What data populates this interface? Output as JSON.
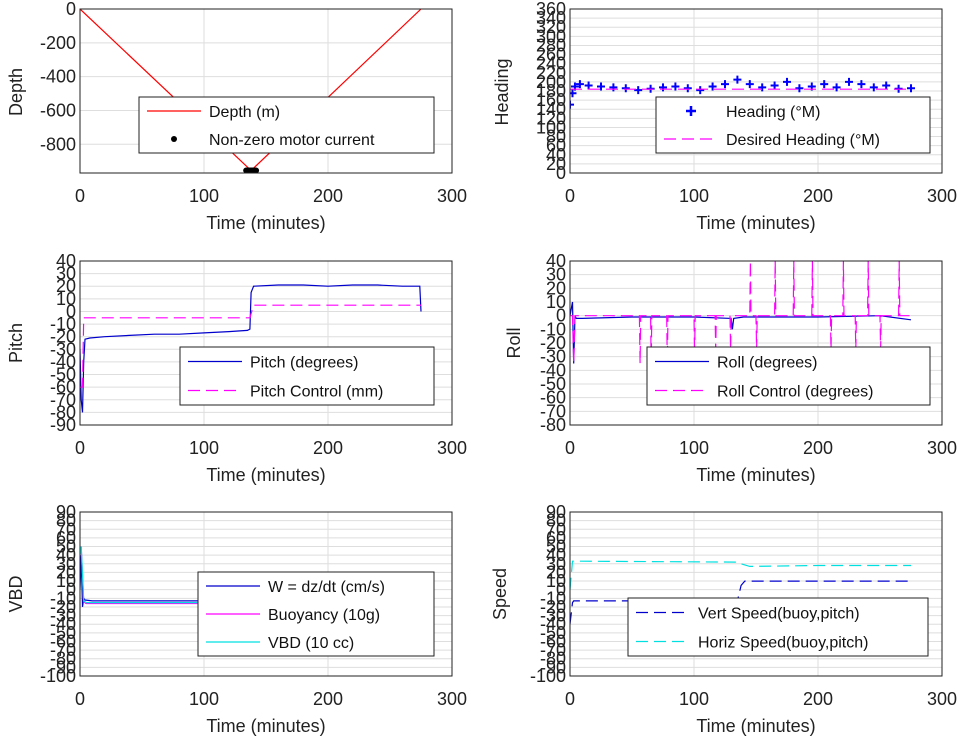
{
  "chart_data": [
    {
      "type": "line",
      "ylabel": "Depth",
      "xlabel": "Time (minutes)",
      "xlim": [
        0,
        300
      ],
      "xticks": [
        0,
        100,
        200,
        300
      ],
      "ylim": [
        -970,
        0
      ],
      "yticks": [
        0,
        -200,
        -400,
        -600,
        -800
      ],
      "legend_position": "lower-right",
      "series": [
        {
          "name": "Depth (m)",
          "style": "solid",
          "marker": "none",
          "color": "#ff0000",
          "x": [
            0,
            138,
            275
          ],
          "y": [
            0,
            -955,
            0
          ]
        },
        {
          "name": "Non-zero motor current",
          "style": "none",
          "marker": "dot",
          "color": "#000000",
          "x": [
            134,
            135,
            136,
            137,
            138,
            139,
            140,
            141,
            142
          ],
          "y": [
            -955,
            -955,
            -955,
            -955,
            -955,
            -955,
            -955,
            -955,
            -955
          ]
        }
      ]
    },
    {
      "type": "scatter",
      "ylabel": "Heading",
      "xlabel": "Time (minutes)",
      "xlim": [
        0,
        300
      ],
      "xticks": [
        0,
        100,
        200,
        300
      ],
      "ylim": [
        0,
        360
      ],
      "yticks": [
        0,
        20,
        40,
        60,
        80,
        100,
        120,
        140,
        160,
        180,
        200,
        220,
        240,
        260,
        280,
        300,
        320,
        340,
        360
      ],
      "legend_position": "lower-right",
      "series": [
        {
          "name": "Heading (°M)",
          "style": "none",
          "marker": "plus",
          "color": "#0000ff",
          "x": [
            0,
            2,
            4,
            8,
            15,
            25,
            35,
            45,
            55,
            65,
            75,
            85,
            95,
            105,
            115,
            125,
            135,
            145,
            155,
            165,
            175,
            185,
            195,
            205,
            215,
            225,
            235,
            245,
            255,
            265,
            275
          ],
          "y": [
            150,
            175,
            190,
            195,
            192,
            190,
            188,
            186,
            182,
            185,
            188,
            190,
            186,
            182,
            190,
            195,
            205,
            195,
            188,
            192,
            200,
            186,
            190,
            195,
            188,
            200,
            195,
            188,
            192,
            185,
            186
          ]
        },
        {
          "name": "Desired Heading (°M)",
          "style": "dashed",
          "marker": "none",
          "color": "#ff00ff",
          "x": [
            0,
            275
          ],
          "y": [
            184,
            184
          ]
        }
      ]
    },
    {
      "type": "line",
      "ylabel": "Pitch",
      "xlabel": "Time (minutes)",
      "xlim": [
        0,
        300
      ],
      "xticks": [
        0,
        100,
        200,
        300
      ],
      "ylim": [
        -90,
        40
      ],
      "yticks": [
        40,
        30,
        20,
        10,
        0,
        -10,
        -20,
        -30,
        -40,
        -50,
        -60,
        -70,
        -80,
        -90
      ],
      "legend_position": "lower-right",
      "series": [
        {
          "name": "Pitch (degrees)",
          "style": "solid",
          "marker": "none",
          "color": "#0000cc",
          "x": [
            0,
            1,
            2,
            3,
            4,
            8,
            20,
            40,
            60,
            80,
            100,
            120,
            135,
            137,
            138,
            140,
            160,
            180,
            200,
            220,
            240,
            260,
            274,
            275
          ],
          "y": [
            -30,
            -70,
            -80,
            -40,
            -22,
            -21,
            -20,
            -19,
            -18,
            -18,
            -17,
            -16,
            -15,
            -14,
            15,
            20,
            21,
            21,
            20,
            21,
            21,
            20,
            20,
            0
          ]
        },
        {
          "name": "Pitch Control (mm)",
          "style": "dashed",
          "marker": "none",
          "color": "#ff00ff",
          "x": [
            0,
            2,
            3,
            137,
            140,
            275
          ],
          "y": [
            -60,
            -60,
            -5,
            -5,
            5,
            5
          ]
        }
      ]
    },
    {
      "type": "line",
      "ylabel": "Roll",
      "xlabel": "Time (minutes)",
      "xlim": [
        0,
        300
      ],
      "xticks": [
        0,
        100,
        200,
        300
      ],
      "ylim": [
        -80,
        40
      ],
      "yticks": [
        40,
        30,
        20,
        10,
        0,
        -10,
        -20,
        -30,
        -40,
        -50,
        -60,
        -70,
        -80
      ],
      "legend_position": "lower-right",
      "series": [
        {
          "name": "Roll (degrees)",
          "style": "solid",
          "marker": "none",
          "color": "#0000cc",
          "x": [
            0,
            2,
            3,
            4,
            5,
            10,
            50,
            100,
            130,
            131,
            132,
            140,
            150,
            200,
            250,
            275
          ],
          "y": [
            0,
            10,
            -35,
            0,
            -2,
            -2,
            -1,
            -1,
            -2,
            -10,
            -2,
            -1,
            -1,
            -1,
            0,
            -3
          ]
        },
        {
          "name": "Roll Control (degrees)",
          "style": "dashed",
          "marker": "none",
          "color": "#ff00ff",
          "x": [
            0,
            2,
            3,
            4,
            56,
            56.5,
            57,
            65,
            65.5,
            66,
            78,
            78.5,
            79,
            100,
            100.5,
            101,
            117,
            117.5,
            118,
            129,
            129.5,
            130,
            145,
            145.5,
            146,
            150,
            150.5,
            151,
            165,
            165.5,
            166,
            180,
            180.5,
            181,
            195,
            195.5,
            196,
            210,
            210.5,
            211,
            220,
            220.5,
            221,
            230,
            230.5,
            231,
            240,
            240.5,
            241,
            250,
            250.5,
            251,
            265,
            265.5,
            266,
            275
          ],
          "y": [
            0,
            0,
            -35,
            0,
            0,
            -35,
            0,
            0,
            -35,
            0,
            0,
            -35,
            0,
            0,
            -30,
            0,
            0,
            -25,
            0,
            0,
            -25,
            0,
            0,
            40,
            0,
            0,
            -25,
            0,
            0,
            40,
            0,
            0,
            40,
            0,
            0,
            40,
            0,
            0,
            -25,
            0,
            0,
            40,
            0,
            0,
            -25,
            0,
            0,
            40,
            0,
            0,
            -25,
            0,
            0,
            40,
            0,
            0
          ]
        }
      ]
    },
    {
      "type": "line",
      "ylabel": "VBD",
      "xlabel": "Time (minutes)",
      "xlim": [
        0,
        300
      ],
      "xticks": [
        0,
        100,
        200,
        300
      ],
      "ylim": [
        -100,
        90
      ],
      "yticks": [
        90,
        80,
        70,
        60,
        50,
        40,
        30,
        20,
        10,
        0,
        -10,
        -20,
        -30,
        -40,
        -50,
        -60,
        -70,
        -80,
        -90,
        -100
      ],
      "legend_position": "lower-right",
      "series": [
        {
          "name": "W = dz/dt (cm/s)",
          "style": "solid",
          "marker": "none",
          "color": "#0000cc",
          "x": [
            0,
            1,
            2,
            3,
            4,
            10,
            50,
            100,
            137,
            139,
            140,
            180,
            220,
            260,
            274,
            275
          ],
          "y": [
            0,
            40,
            -20,
            -10,
            -12,
            -13,
            -13,
            -13,
            -13,
            10,
            13,
            13,
            12,
            13,
            13,
            0
          ]
        },
        {
          "name": "Buoyancy (10g)",
          "style": "solid",
          "marker": "none",
          "color": "#ff00ff",
          "x": [
            0,
            1,
            3,
            5,
            137,
            139,
            140,
            275
          ],
          "y": [
            40,
            50,
            -14,
            -16,
            -16,
            14,
            16,
            16
          ]
        },
        {
          "name": "VBD (10 cc)",
          "style": "solid",
          "marker": "none",
          "color": "#00e0e0",
          "x": [
            0,
            1,
            3,
            5,
            137,
            139,
            140,
            275
          ],
          "y": [
            40,
            50,
            -13,
            -15,
            -15,
            15,
            17,
            17
          ]
        }
      ]
    },
    {
      "type": "line",
      "ylabel": "Speed",
      "xlabel": "Time (minutes)",
      "xlim": [
        0,
        300
      ],
      "xticks": [
        0,
        100,
        200,
        300
      ],
      "ylim": [
        -100,
        90
      ],
      "yticks": [
        90,
        80,
        70,
        60,
        50,
        40,
        30,
        20,
        10,
        0,
        -10,
        -20,
        -30,
        -40,
        -50,
        -60,
        -70,
        -80,
        -90,
        -100
      ],
      "legend_position": "lower-right",
      "series": [
        {
          "name": "Vert Speed(buoy,pitch)",
          "style": "dashed",
          "marker": "none",
          "color": "#0000cc",
          "x": [
            0,
            2,
            3,
            5,
            135,
            138,
            141,
            275
          ],
          "y": [
            -40,
            -15,
            -13,
            -13,
            -13,
            5,
            10,
            10
          ]
        },
        {
          "name": "Horiz Speed(buoy,pitch)",
          "style": "dashed",
          "marker": "none",
          "color": "#00e0e0",
          "x": [
            0,
            2,
            4,
            10,
            135,
            138,
            145,
            200,
            275
          ],
          "y": [
            0,
            33,
            33,
            33,
            32,
            30,
            27,
            28,
            28
          ]
        }
      ]
    }
  ]
}
